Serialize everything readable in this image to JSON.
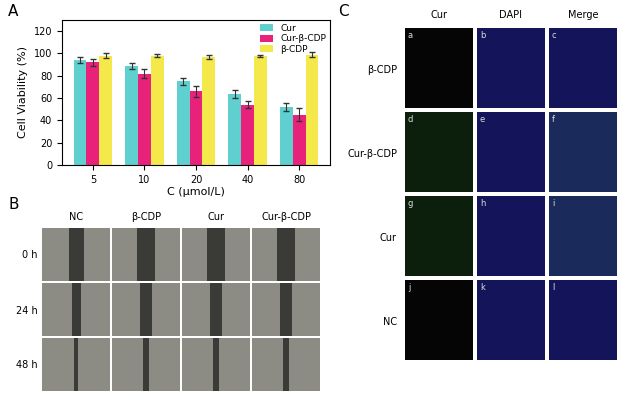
{
  "chart_data": {
    "type": "bar",
    "panel_label": "A",
    "x_label": "C (μmol/L)",
    "y_label": "Cell Viability (%)",
    "categories": [
      "5",
      "10",
      "20",
      "40",
      "80"
    ],
    "series": [
      {
        "name": "Cur",
        "color": "#5fd0cf",
        "values": [
          94,
          89,
          75,
          64,
          52
        ],
        "error": [
          3,
          2.5,
          3,
          3.5,
          4
        ]
      },
      {
        "name": "Cur-β-CDP",
        "color": "#e8217b",
        "values": [
          92,
          82,
          66,
          54,
          45
        ],
        "error": [
          3,
          4,
          5,
          3,
          6
        ]
      },
      {
        "name": "β-CDP",
        "color": "#f4e84a",
        "values": [
          98,
          98,
          97,
          98,
          99
        ],
        "error": [
          2,
          1.5,
          2,
          1,
          2
        ]
      }
    ],
    "ylim": [
      0,
      130
    ],
    "yticks": [
      0,
      20,
      40,
      60,
      80,
      100,
      120
    ],
    "legend": "upper right",
    "grid": false
  },
  "wound_healing": {
    "panel_label": "B",
    "columns": [
      "NC",
      "β-CDP",
      "Cur",
      "Cur-β-CDP"
    ],
    "rows": [
      "0 h",
      "24 h",
      "48 h"
    ]
  },
  "fluorescence": {
    "panel_label": "C",
    "columns": [
      "Cur",
      "DAPI",
      "Merge"
    ],
    "rows": [
      "β-CDP",
      "Cur-β-CDP",
      "Cur",
      "NC"
    ],
    "image_letters": [
      "a",
      "b",
      "c",
      "d",
      "e",
      "f",
      "g",
      "h",
      "i",
      "j",
      "k",
      "l"
    ]
  }
}
